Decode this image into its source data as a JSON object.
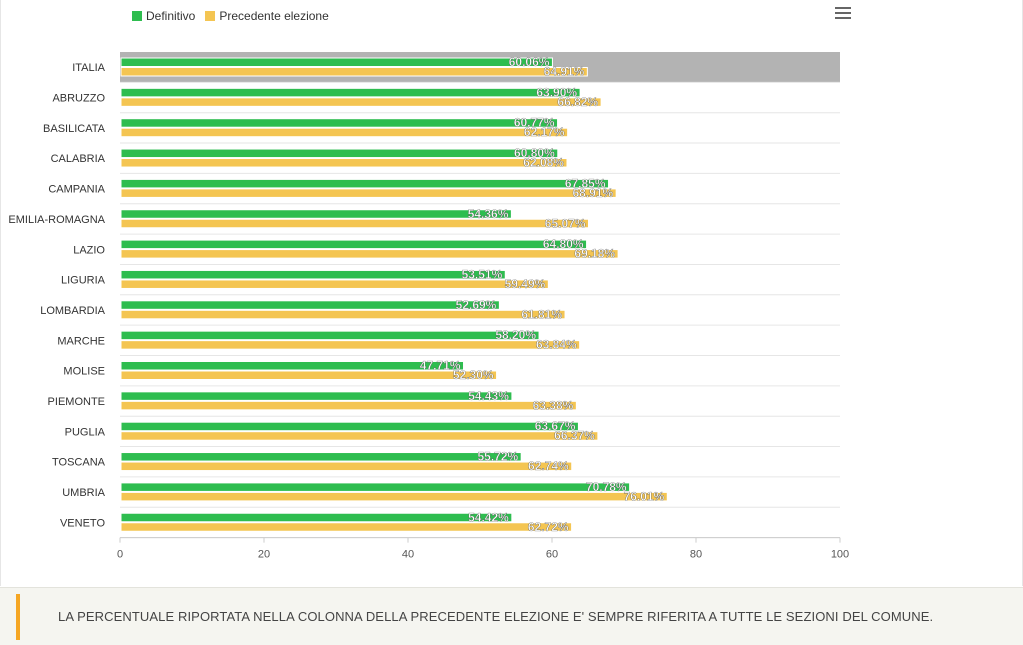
{
  "legend": {
    "items": [
      {
        "label": "Definitivo",
        "color": "#2ebd4f"
      },
      {
        "label": "Precedente elezione",
        "color": "#f4c552"
      }
    ]
  },
  "menu": {
    "icon": "hamburger-menu-icon"
  },
  "note": {
    "text": "LA PERCENTUALE RIPORTATA NELLA COLONNA DELLA PRECEDENTE ELEZIONE E' SEMPRE RIFERITA A TUTTE LE SEZIONI DEL COMUNE."
  },
  "colors": {
    "definitivo": "#2ebd4f",
    "precedente": "#f4c552",
    "highlight": "#b3b3b3",
    "grid": "#e6e6e6",
    "accent": "#f5a623"
  },
  "chart_data": {
    "type": "bar",
    "orientation": "horizontal",
    "categories": [
      "ITALIA",
      "ABRUZZO",
      "BASILICATA",
      "CALABRIA",
      "CAMPANIA",
      "EMILIA-ROMAGNA",
      "LAZIO",
      "LIGURIA",
      "LOMBARDIA",
      "MARCHE",
      "MOLISE",
      "PIEMONTE",
      "PUGLIA",
      "TOSCANA",
      "UMBRIA",
      "VENETO"
    ],
    "highlighted_category": "ITALIA",
    "series": [
      {
        "name": "Definitivo",
        "color": "#2ebd4f",
        "values": [
          60.06,
          63.9,
          60.77,
          60.8,
          67.85,
          54.36,
          64.8,
          53.51,
          52.69,
          58.2,
          47.71,
          54.43,
          63.67,
          55.72,
          70.78,
          54.42
        ],
        "labels": [
          "60.06%",
          "63.90%",
          "60.77%",
          "60.80%",
          "67.85%",
          "54.36%",
          "64.80%",
          "53.51%",
          "52.69%",
          "58.20%",
          "47.71%",
          "54.43%",
          "63.67%",
          "55.72%",
          "70.78%",
          "54.42%"
        ]
      },
      {
        "name": "Precedente elezione",
        "color": "#f4c552",
        "values": [
          64.91,
          66.82,
          62.17,
          62.08,
          68.91,
          65.07,
          69.18,
          59.49,
          61.81,
          63.84,
          52.3,
          63.38,
          66.37,
          62.74,
          76.01,
          62.72
        ],
        "labels": [
          "64.91%",
          "66.82%",
          "62.17%",
          "62.08%",
          "68.91%",
          "65.07%",
          "69.18%",
          "59.49%",
          "61.81%",
          "63.84%",
          "52.30%",
          "63.38%",
          "66.37%",
          "62.74%",
          "76.01%",
          "62.72%"
        ]
      }
    ],
    "xlim": [
      0,
      100
    ],
    "xticks": [
      "0",
      "20",
      "40",
      "60",
      "80",
      "100"
    ],
    "xlabel": "",
    "ylabel": "",
    "grid": true,
    "legend_position": "top-left"
  }
}
